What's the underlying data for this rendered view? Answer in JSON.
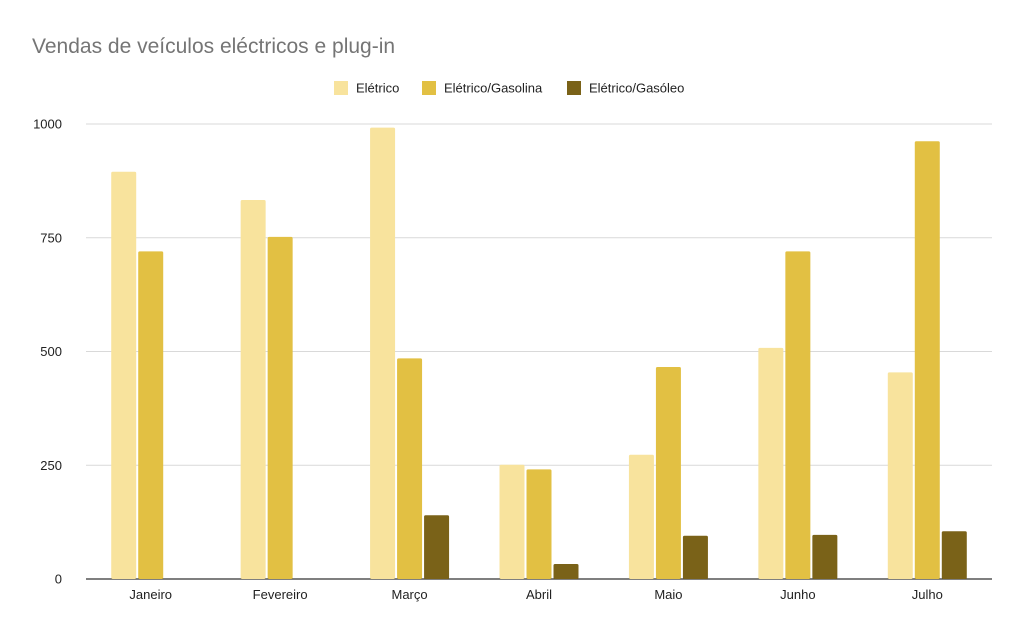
{
  "chart_data": {
    "type": "bar",
    "title": "Vendas de veículos eléctricos e plug-in",
    "xlabel": "",
    "ylabel": "",
    "categories": [
      "Janeiro",
      "Fevereiro",
      "Março",
      "Abril",
      "Maio",
      "Junho",
      "Julho"
    ],
    "series": [
      {
        "name": "Elétrico",
        "color": "#f8e39d",
        "values": [
          895,
          833,
          992,
          251,
          273,
          508,
          454
        ]
      },
      {
        "name": "Elétrico/Gasolina",
        "color": "#e2c043",
        "values": [
          720,
          752,
          485,
          241,
          466,
          720,
          962
        ]
      },
      {
        "name": "Elétrico/Gasóleo",
        "color": "#7a6218",
        "values": [
          0,
          0,
          140,
          33,
          95,
          97,
          105
        ]
      }
    ],
    "ylim": [
      0,
      1000
    ],
    "yticks": [
      "0",
      "250",
      "500",
      "750",
      "1000"
    ],
    "grid": true,
    "legend_position": "top-center"
  }
}
